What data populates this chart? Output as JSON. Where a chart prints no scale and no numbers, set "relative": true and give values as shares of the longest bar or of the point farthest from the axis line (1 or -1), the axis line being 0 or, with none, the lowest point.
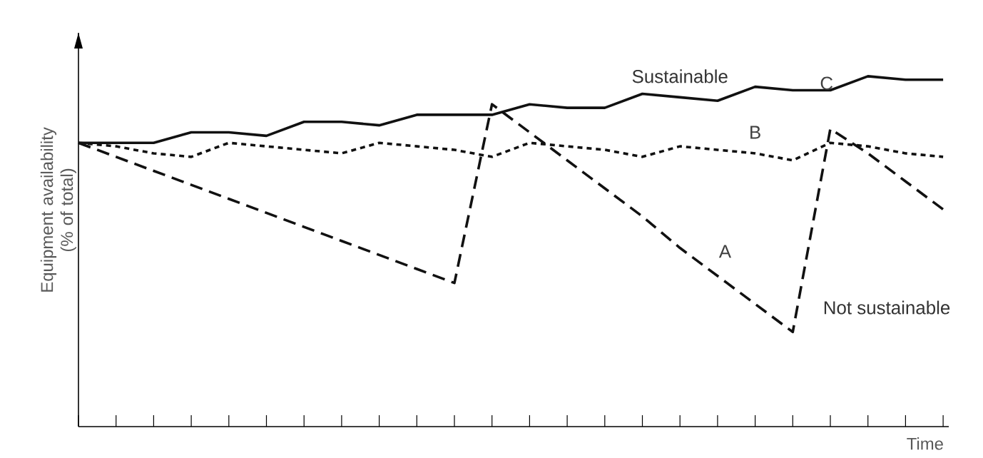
{
  "chart_data": {
    "type": "line",
    "relative": true,
    "xlabel": "Time",
    "ylabel": "Equipment availability (% of total)",
    "categories": [
      null,
      null,
      null,
      null,
      null,
      null,
      null,
      null,
      null,
      null,
      null,
      null,
      null,
      null,
      null,
      null,
      null,
      null,
      null,
      null,
      null,
      null,
      null,
      null
    ],
    "series": [
      {
        "name": "A",
        "color": "#111111",
        "line_style": "dashed",
        "values": [
          0.81,
          0.77,
          0.73,
          0.69,
          0.65,
          0.61,
          0.57,
          0.53,
          0.49,
          0.45,
          0.41,
          0.92,
          0.84,
          0.76,
          0.68,
          0.6,
          0.51,
          0.43,
          0.35,
          0.27,
          0.85,
          0.78,
          0.7,
          0.62
        ]
      },
      {
        "name": "B",
        "color": "#111111",
        "line_style": "dotted",
        "values": [
          0.81,
          0.8,
          0.78,
          0.77,
          0.81,
          0.8,
          0.79,
          0.78,
          0.81,
          0.8,
          0.79,
          0.77,
          0.81,
          0.8,
          0.79,
          0.77,
          0.8,
          0.79,
          0.78,
          0.76,
          0.81,
          0.8,
          0.78,
          0.77
        ]
      },
      {
        "name": "C",
        "color": "#111111",
        "line_style": "solid",
        "values": [
          0.81,
          0.81,
          0.81,
          0.84,
          0.84,
          0.83,
          0.87,
          0.87,
          0.86,
          0.89,
          0.89,
          0.89,
          0.92,
          0.91,
          0.91,
          0.95,
          0.94,
          0.93,
          0.97,
          0.96,
          0.96,
          1.0,
          0.99,
          0.99
        ]
      }
    ],
    "annotations": [
      "Sustainable",
      "Not sustainable"
    ]
  }
}
